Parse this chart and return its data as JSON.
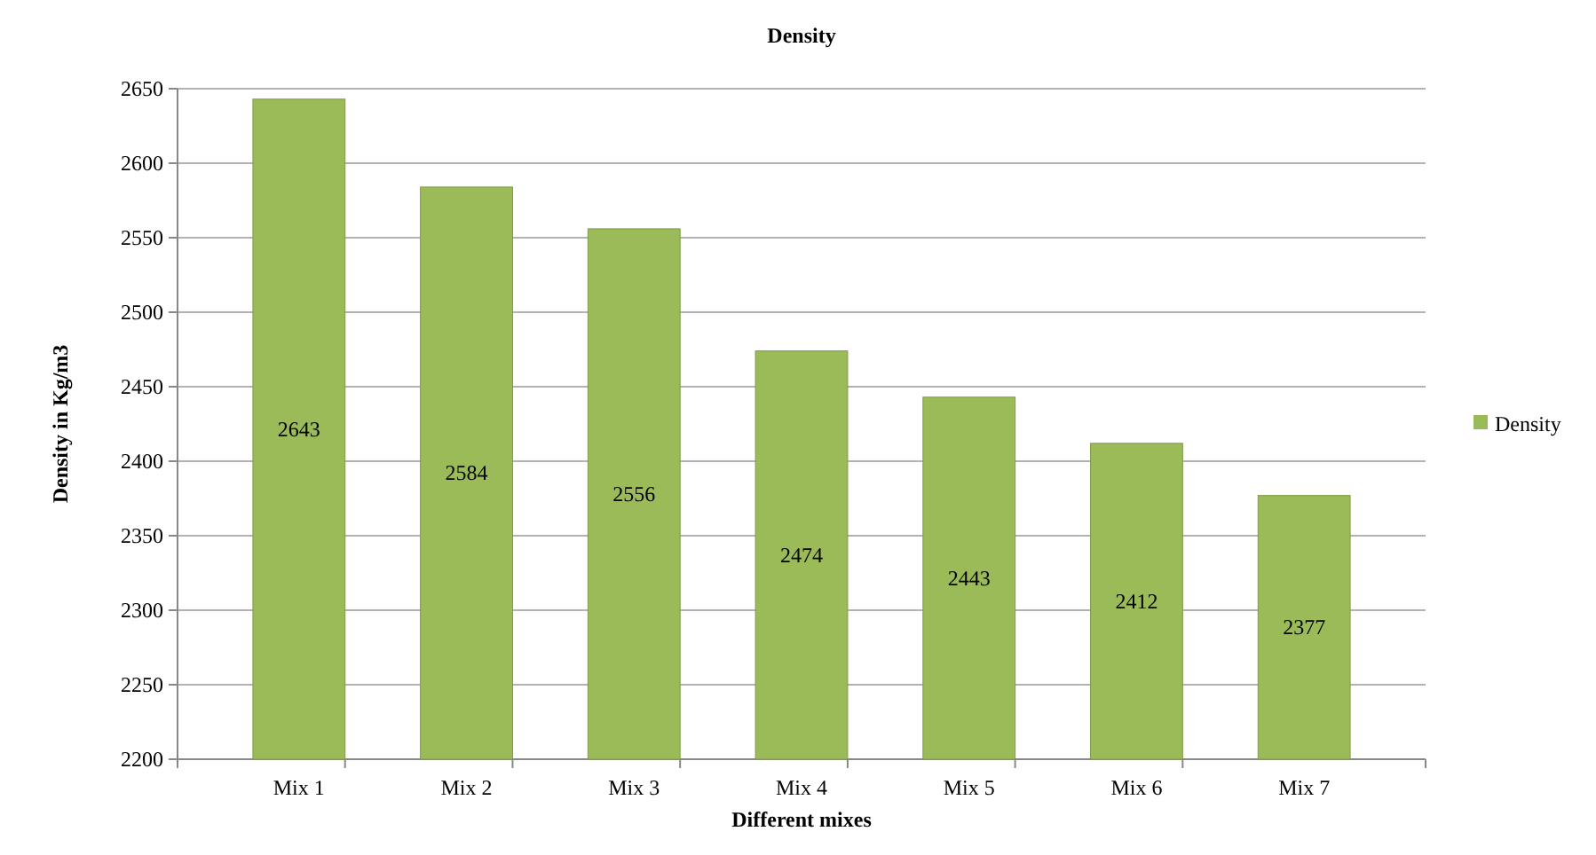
{
  "chart_data": {
    "type": "bar",
    "title": "Density",
    "xlabel": "Different mixes",
    "ylabel": "Density in Kg/m3",
    "categories": [
      "Mix 1",
      "Mix 2",
      "Mix 3",
      "Mix 4",
      "Mix 5",
      "Mix 6",
      "Mix 7"
    ],
    "series": [
      {
        "name": "Density",
        "color": "#9bbb59",
        "values": [
          2643,
          2584,
          2556,
          2474,
          2443,
          2412,
          2377
        ]
      }
    ],
    "ylim": [
      2200,
      2650
    ],
    "yticks": [
      2200,
      2250,
      2300,
      2350,
      2400,
      2450,
      2500,
      2550,
      2600,
      2650
    ],
    "grid": "y",
    "legend": "right",
    "data_labels": true
  }
}
